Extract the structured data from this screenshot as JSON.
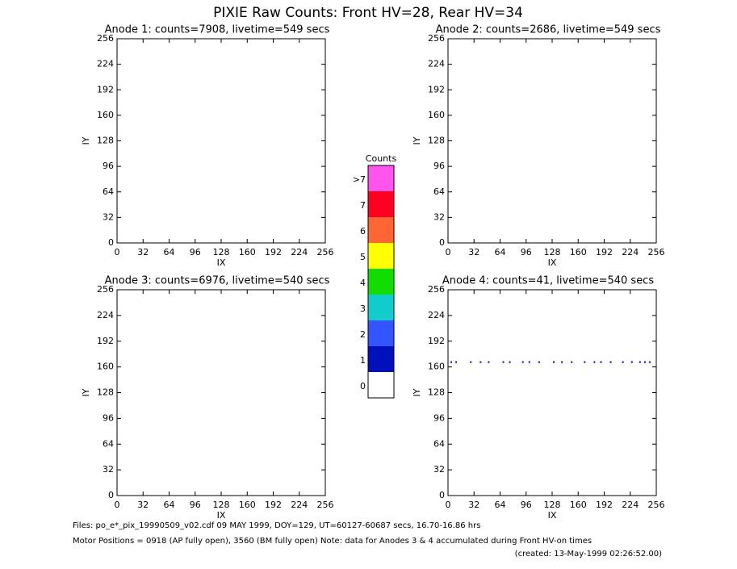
{
  "title": "PIXIE Raw Counts:  Front HV=28, Rear HV=34",
  "chart_data": [
    {
      "type": "scatter",
      "title": "Anode 1: counts=7908, livetime=549 secs",
      "xlabel": "IX",
      "ylabel": "IY",
      "xlim": [
        0,
        256
      ],
      "ylim": [
        0,
        256
      ],
      "xticks": [
        0,
        32,
        64,
        96,
        128,
        160,
        192,
        224,
        256
      ],
      "yticks": [
        0,
        32,
        64,
        96,
        128,
        160,
        192,
        224,
        256
      ]
    },
    {
      "type": "scatter",
      "title": "Anode 2: counts=2686, livetime=549 secs",
      "xlabel": "IX",
      "ylabel": "IY",
      "xlim": [
        0,
        256
      ],
      "ylim": [
        0,
        256
      ],
      "xticks": [
        0,
        32,
        64,
        96,
        128,
        160,
        192,
        224,
        256
      ],
      "yticks": [
        0,
        32,
        64,
        96,
        128,
        160,
        192,
        224,
        256
      ]
    },
    {
      "type": "scatter",
      "title": "Anode 3: counts=6976, livetime=540 secs",
      "xlabel": "IX",
      "ylabel": "IY",
      "xlim": [
        0,
        256
      ],
      "ylim": [
        0,
        256
      ],
      "xticks": [
        0,
        32,
        64,
        96,
        128,
        160,
        192,
        224,
        256
      ],
      "yticks": [
        0,
        32,
        64,
        96,
        128,
        160,
        192,
        224,
        256
      ]
    },
    {
      "type": "scatter",
      "title": "Anode 4: counts=41, livetime=540 secs",
      "xlabel": "IX",
      "ylabel": "IY",
      "xlim": [
        0,
        256
      ],
      "ylim": [
        0,
        256
      ],
      "xticks": [
        0,
        32,
        64,
        96,
        128,
        160,
        192,
        224,
        256
      ],
      "yticks": [
        0,
        32,
        64,
        96,
        128,
        160,
        192,
        224,
        256
      ],
      "color": "#0000aa",
      "x": [
        4,
        10,
        28,
        40,
        50,
        68,
        76,
        92,
        100,
        112,
        130,
        140,
        152,
        168,
        180,
        188,
        200,
        215,
        226,
        236,
        242,
        248
      ],
      "values": [
        166,
        166,
        166,
        166,
        166,
        166,
        166,
        166,
        166,
        166,
        166,
        166,
        166,
        166,
        166,
        166,
        166,
        166,
        166,
        166,
        166,
        166
      ]
    }
  ],
  "colorbar": {
    "title": "Counts",
    "levels": [
      {
        "label": ">7",
        "color": "#ff55ee"
      },
      {
        "label": "7",
        "color": "#ff0022"
      },
      {
        "label": "6",
        "color": "#ff6633"
      },
      {
        "label": "5",
        "color": "#ffff00"
      },
      {
        "label": "4",
        "color": "#11dd00"
      },
      {
        "label": "3",
        "color": "#11cccc"
      },
      {
        "label": "2",
        "color": "#3355ff"
      },
      {
        "label": "1",
        "color": "#0011bb"
      },
      {
        "label": "0",
        "color": "#ffffff"
      }
    ]
  },
  "footer": {
    "files": "Files: po_e*_pix_19990509_v02.cdf    09 MAY 1999, DOY=129, UT=60127-60687 secs, 16.70-16.86 hrs",
    "motor": "Motor Positions = 0918 (AP fully open), 3560 (BM fully open)    Note: data for Anodes 3 & 4 accumulated during Front HV-on times",
    "created": "(created: 13-May-1999 02:26:52.00)"
  }
}
